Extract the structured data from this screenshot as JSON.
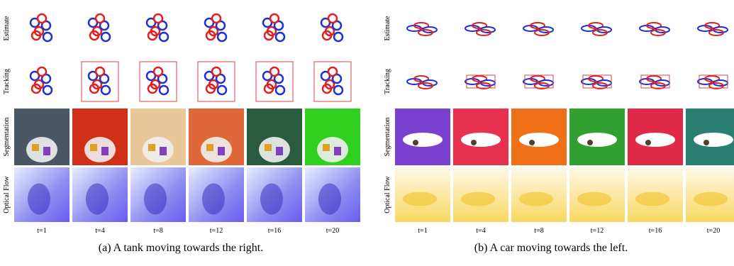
{
  "panels": [
    {
      "row_labels": [
        "Estimate",
        "Tracking",
        "Segmentation",
        "Optical Flow"
      ],
      "time_labels": [
        "t=1",
        "t=4",
        "t=8",
        "t=12",
        "t=16",
        "t=20"
      ],
      "caption": "(a) A tank moving towards the right."
    },
    {
      "row_labels": [
        "Estimate",
        "Tracking",
        "Segmentation",
        "Optical Flow"
      ],
      "time_labels": [
        "t=1",
        "t=4",
        "t=8",
        "t=12",
        "t=16",
        "t=20"
      ],
      "caption": "(b) A car moving towards the left."
    }
  ]
}
